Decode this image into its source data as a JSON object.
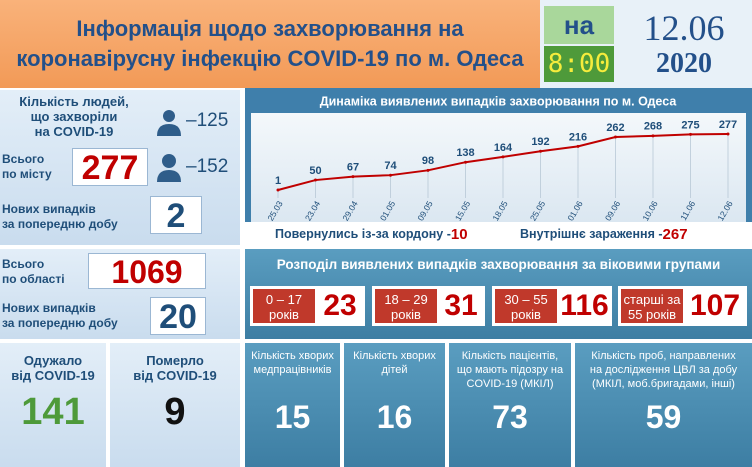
{
  "header": {
    "title": [
      "Інформація щодо захворювання на",
      "коронавірусну інфекцію COVID-19 по м. Одеса"
    ],
    "prefix": "на",
    "time": "8:00",
    "date": "12.06",
    "year": "2020"
  },
  "city": {
    "caption": [
      "Кількість людей,",
      "що захворіли",
      "на COVID-19"
    ],
    "male": "–125",
    "female": "–152",
    "total_label": [
      "Всього",
      "по місту"
    ],
    "total": 277,
    "new_label": [
      "Нових випадків",
      "за попередню добу"
    ],
    "new": 2
  },
  "region": {
    "total_label": [
      "Всього",
      "по області"
    ],
    "total": 1069,
    "new_label": [
      "Нових випадків",
      "за попередню добу"
    ],
    "new": 20
  },
  "chart_data": {
    "type": "line",
    "title": "Динаміка виявлених випадків захворювання по м. Одеса",
    "color": "#c00000",
    "categories": [
      "25.03",
      "23.04",
      "29.04",
      "01.05",
      "09.05",
      "15.05",
      "18.05",
      "25.05",
      "01.06",
      "09.06",
      "10.06",
      "11.06",
      "12.06"
    ],
    "values": [
      1,
      50,
      67,
      74,
      98,
      138,
      164,
      192,
      216,
      262,
      268,
      275,
      277
    ]
  },
  "sources": [
    {
      "label": "Повернулись із-за кордону -",
      "value": 10
    },
    {
      "label": "Внутрішнє зараження -",
      "value": 267
    }
  ],
  "ages": {
    "title": "Розподіл виявлених випадків захворювання за віковими групами",
    "groups": [
      {
        "label": [
          "0 – 17",
          "років"
        ],
        "value": 23
      },
      {
        "label": [
          "18 – 29",
          "років"
        ],
        "value": 31
      },
      {
        "label": [
          "30 – 55",
          "років"
        ],
        "value": 116
      },
      {
        "label": [
          "старші за",
          "55 років"
        ],
        "value": 107
      }
    ]
  },
  "outcomes": [
    {
      "label": [
        "Одужало",
        "від COVID-19"
      ],
      "value": 141
    },
    {
      "label": [
        "Померло",
        "від COVID-19"
      ],
      "value": 9
    }
  ],
  "cards": [
    {
      "label": [
        "Кількість хворих",
        "медпрацівників"
      ],
      "value": 15
    },
    {
      "label": [
        "Кількість хворих",
        "дітей"
      ],
      "value": 16
    },
    {
      "label": [
        "Кількість пацієнтів,",
        "що мають підозру на",
        "COVID-19 (МКІЛ)"
      ],
      "value": 73
    },
    {
      "label": [
        "Кількість проб, направлених",
        "на дослідження ЦВЛ за добу",
        "(МКІЛ, моб.бригадами, інші)"
      ],
      "value": 59
    }
  ]
}
